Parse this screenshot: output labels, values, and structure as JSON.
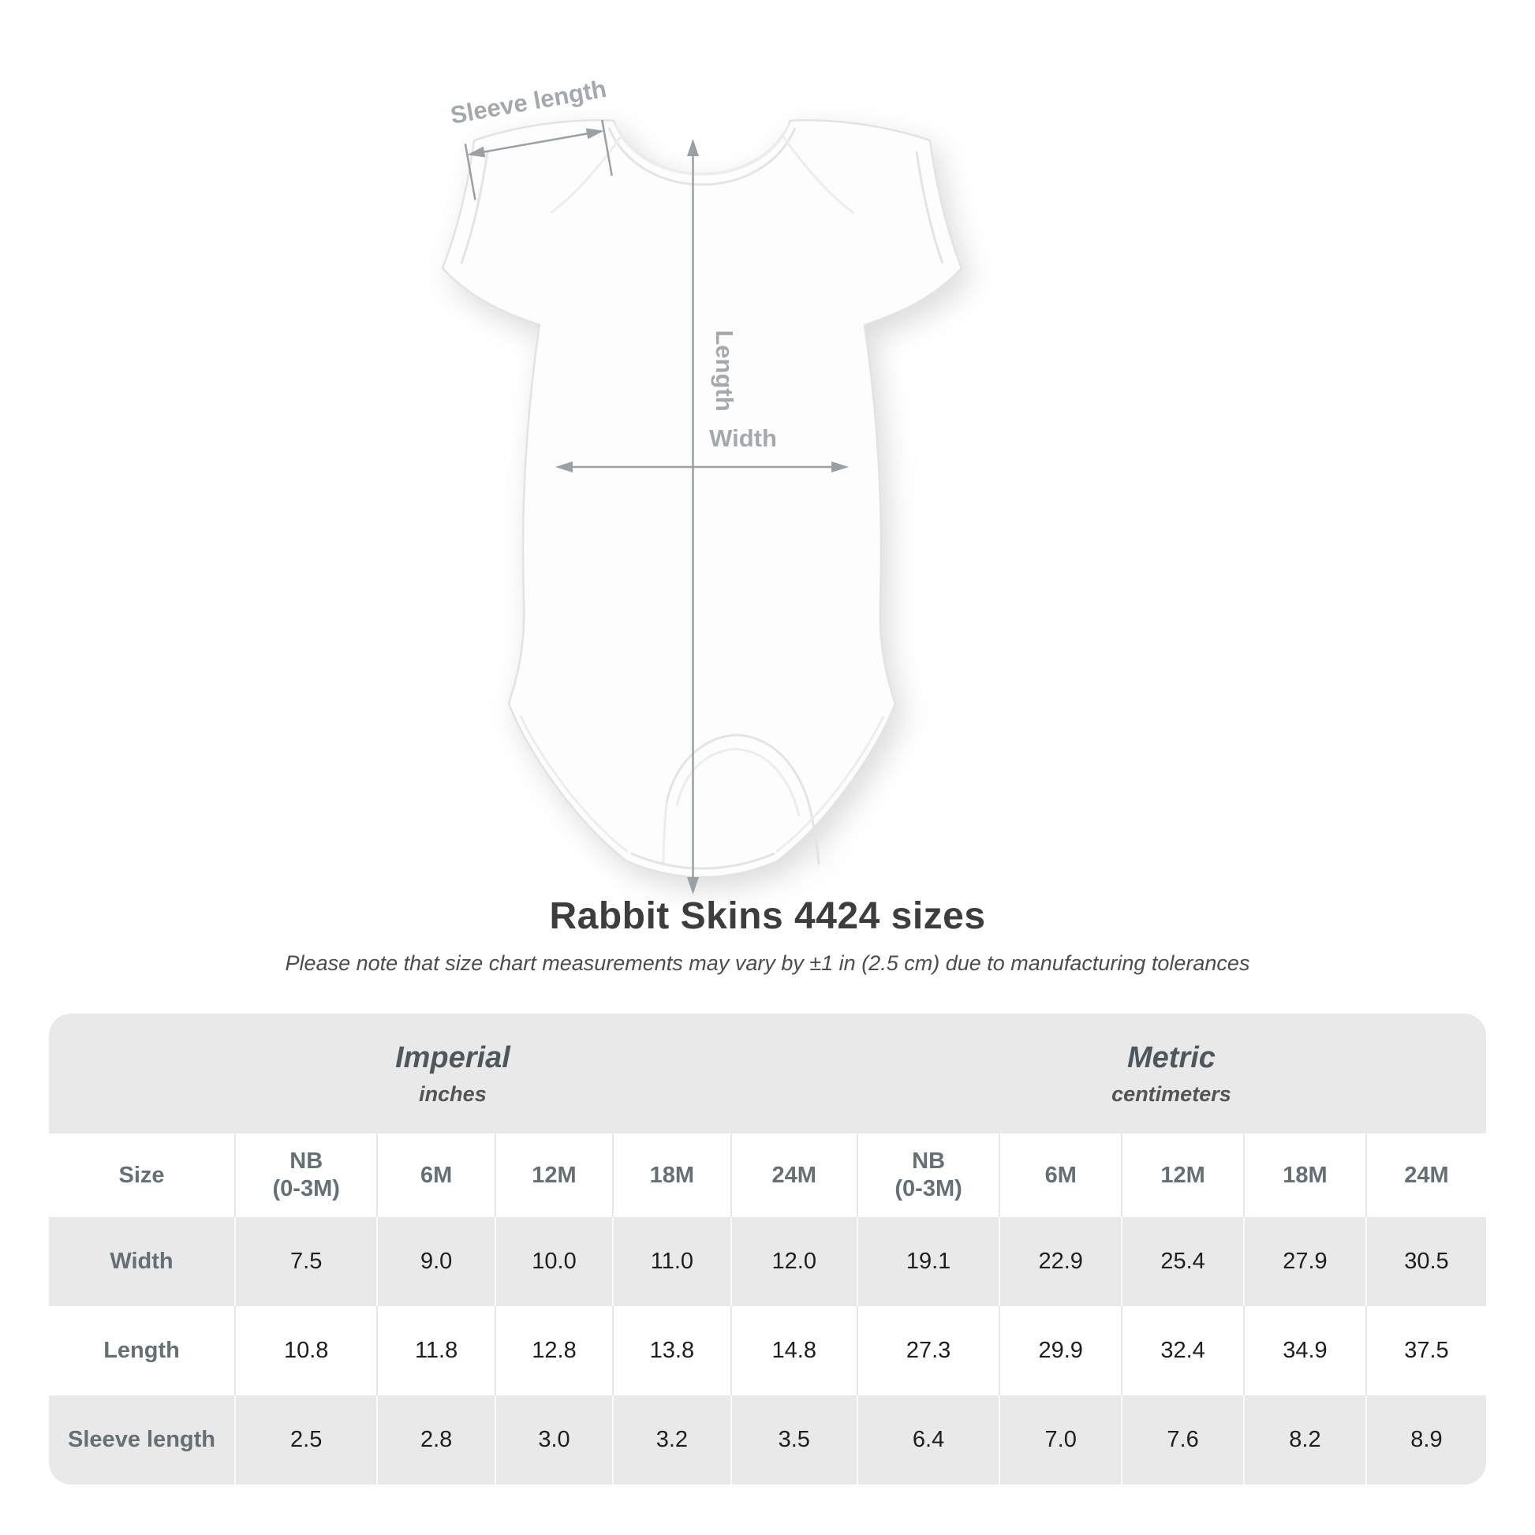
{
  "diagram": {
    "sleeve_length_label": "Sleeve length",
    "length_label": "Length",
    "width_label": "Width"
  },
  "header": {
    "title": "Rabbit Skins 4424 sizes",
    "note": "Please note that size chart measurements may vary by ±1 in (2.5 cm) due to manufacturing tolerances"
  },
  "table": {
    "groups": [
      {
        "name": "Imperial",
        "unit": "inches"
      },
      {
        "name": "Metric",
        "unit": "centimeters"
      }
    ],
    "size_label": "Size",
    "size_columns": [
      "NB\n(0-3M)",
      "6M",
      "12M",
      "18M",
      "24M"
    ],
    "rows": [
      {
        "label": "Width",
        "imperial": [
          "7.5",
          "9.0",
          "10.0",
          "11.0",
          "12.0"
        ],
        "metric": [
          "19.1",
          "22.9",
          "25.4",
          "27.9",
          "30.5"
        ]
      },
      {
        "label": "Length",
        "imperial": [
          "10.8",
          "11.8",
          "12.8",
          "13.8",
          "14.8"
        ],
        "metric": [
          "27.3",
          "29.9",
          "32.4",
          "34.9",
          "37.5"
        ]
      },
      {
        "label": "Sleeve length",
        "imperial": [
          "2.5",
          "2.8",
          "3.0",
          "3.2",
          "3.5"
        ],
        "metric": [
          "6.4",
          "7.0",
          "7.6",
          "8.2",
          "8.9"
        ]
      }
    ]
  },
  "colors": {
    "table_band": "#e9e9e9",
    "annotation_gray": "#9aa0a3",
    "title_text": "#3d3d3d",
    "header_text": "#667074",
    "value_text": "#1e1e1e"
  },
  "chart_data": {
    "type": "table",
    "title": "Rabbit Skins 4424 sizes",
    "note": "Please note that size chart measurements may vary by ±1 in (2.5 cm) due to manufacturing tolerances",
    "column_groups": [
      "Imperial (inches)",
      "Metric (centimeters)"
    ],
    "columns": [
      "Size",
      "NB (0-3M)",
      "6M",
      "12M",
      "18M",
      "24M",
      "NB (0-3M)",
      "6M",
      "12M",
      "18M",
      "24M"
    ],
    "rows": [
      [
        "Width",
        7.5,
        9.0,
        10.0,
        11.0,
        12.0,
        19.1,
        22.9,
        25.4,
        27.9,
        30.5
      ],
      [
        "Length",
        10.8,
        11.8,
        12.8,
        13.8,
        14.8,
        27.3,
        29.9,
        32.4,
        34.9,
        37.5
      ],
      [
        "Sleeve length",
        2.5,
        2.8,
        3.0,
        3.2,
        3.5,
        6.4,
        7.0,
        7.6,
        8.2,
        8.9
      ]
    ]
  }
}
